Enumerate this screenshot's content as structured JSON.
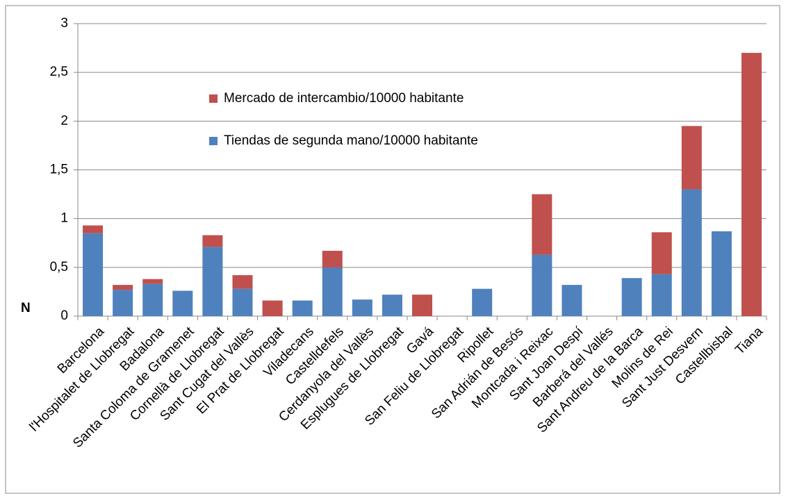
{
  "chart_data": {
    "type": "stacked_bar",
    "y_label": "N",
    "categories": [
      "Barcelona",
      "l'Hospitalet de Llobregat",
      "Badalona",
      "Santa Coloma de Gramenet",
      "Cornellà de Llobregat",
      "Sant Cugat del Vallès",
      "El Prat de Llobregat",
      "Viladecans",
      "Castelldefels",
      "Cerdanyola del Vallès",
      "Esplugues de Llobregat",
      "Gavá",
      "San Feliu de Llobregat",
      "Ripollet",
      "San Adrián de Besós",
      "Montcada i Reixac",
      "Sant Joan Despí",
      "Barberá del Vallés",
      "Sant Andreu de la Barca",
      "Molins de Rei",
      "Sant Just Desvern",
      "Castellbisbal",
      "Tiana"
    ],
    "series": [
      {
        "name": "Tiendas de segunda mano/10000 habitante",
        "color": "#4f81bd",
        "values": [
          0.85,
          0.27,
          0.33,
          0.26,
          0.71,
          0.28,
          0,
          0.16,
          0.5,
          0.17,
          0.22,
          0,
          0,
          0.28,
          0,
          0.63,
          0.32,
          0,
          0.39,
          0.43,
          1.3,
          0.87,
          0
        ]
      },
      {
        "name": "Mercado de intercambio/10000 habitante",
        "color": "#c0504d",
        "values": [
          0.08,
          0.05,
          0.05,
          0,
          0.12,
          0.14,
          0.16,
          0,
          0.17,
          0,
          0,
          0.22,
          0,
          0,
          0,
          0.62,
          0,
          0,
          0,
          0.43,
          0.65,
          0,
          2.7
        ]
      }
    ],
    "ylim": [
      0,
      3
    ],
    "yticks": [
      0,
      {
        "value": 0.5,
        "label": "0,5"
      },
      1,
      {
        "value": 1.5,
        "label": "1,5"
      },
      2,
      {
        "value": 2.5,
        "label": "2,5"
      },
      3
    ],
    "grid": true
  }
}
